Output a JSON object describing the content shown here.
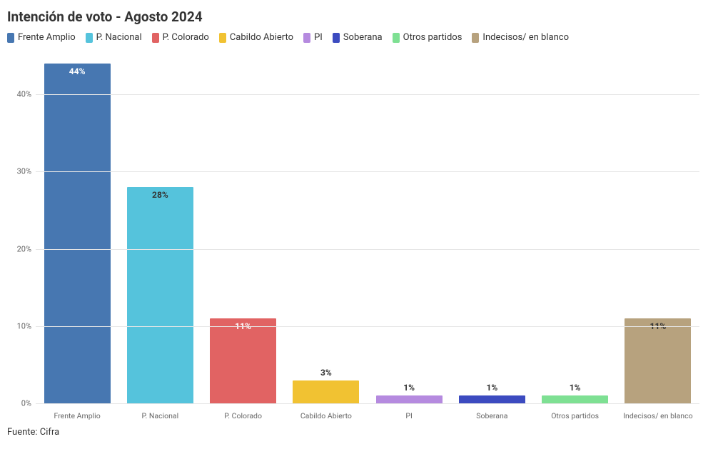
{
  "title": "Intención de voto - Agosto 2024",
  "source": "Fuente: Cifra",
  "chart": {
    "type": "bar",
    "ylim": [
      0,
      45
    ],
    "yticks": [
      0,
      10,
      20,
      30,
      40
    ],
    "ytick_suffix": "%",
    "background_color": "#ffffff",
    "grid_color": "#e6e6e6",
    "title_fontsize": 19,
    "axis_label_color": "#666666",
    "bar_label_fontsize": 12,
    "x_label_fontsize": 10.5,
    "bar_width_pct": 80,
    "value_label_threshold": 3,
    "series": [
      {
        "name": "Frente Amplio",
        "value": 44,
        "color": "#4777b1",
        "label_color": "#ffffff"
      },
      {
        "name": "P. Nacional",
        "value": 28,
        "color": "#55c3dc",
        "label_color": "#333333"
      },
      {
        "name": "P. Colorado",
        "value": 11,
        "color": "#e16363",
        "label_color": "#ffffff"
      },
      {
        "name": "Cabildo Abierto",
        "value": 3,
        "color": "#f1c232",
        "label_color": "#333333"
      },
      {
        "name": "PI",
        "value": 1,
        "color": "#b58adf",
        "label_color": "#333333"
      },
      {
        "name": "Soberana",
        "value": 1,
        "color": "#3c4bc0",
        "label_color": "#333333"
      },
      {
        "name": "Otros partidos",
        "value": 1,
        "color": "#7ee093",
        "label_color": "#333333"
      },
      {
        "name": "Indecisos/ en blanco",
        "value": 11,
        "color": "#b7a27e",
        "label_color": "#333333"
      }
    ]
  }
}
